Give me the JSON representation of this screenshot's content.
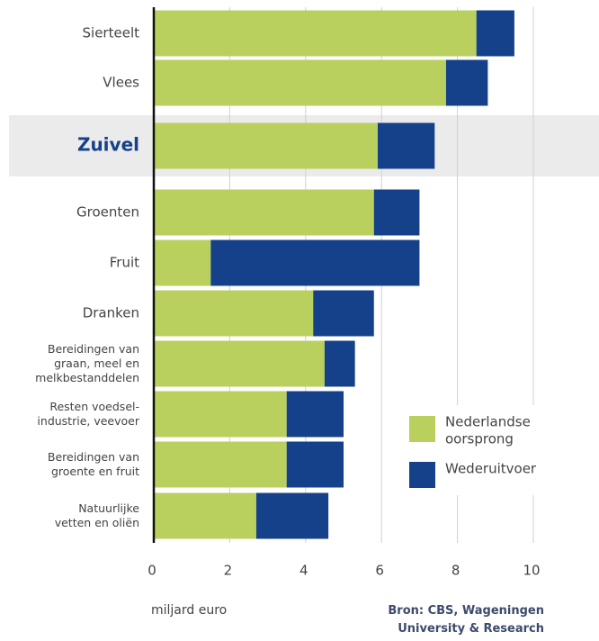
{
  "chart_data": {
    "type": "stacked-barh",
    "categories": [
      "Sierteelt",
      "Vlees",
      "Zuivel",
      "Groenten",
      "Fruit",
      "Dranken",
      "Bereidingen van\ngraan, meel en\nmelkbestanddelen",
      "Resten voedsel-\nindustrie, veevoer",
      "Bereidingen van\ngroente en fruit",
      "Natuurlijke\nvetten en oliën"
    ],
    "series": [
      {
        "name": "Nederlandse\noorsprong",
        "color": "#b9cf5e",
        "values": [
          8.5,
          7.7,
          5.9,
          5.8,
          1.5,
          4.2,
          4.5,
          3.5,
          3.5,
          2.7
        ]
      },
      {
        "name": "Wederuitvoer",
        "color": "#15418a",
        "values": [
          1.0,
          1.1,
          1.5,
          1.2,
          5.5,
          1.6,
          0.8,
          1.5,
          1.5,
          1.9
        ]
      }
    ],
    "highlight": "Zuivel",
    "xlim": [
      0,
      10
    ],
    "xticks": [
      0,
      2,
      4,
      6,
      8,
      10
    ],
    "grid": true,
    "xlabel": "miljard euro",
    "source": "Bron: CBS, Wageningen\nUniversity & Research"
  }
}
